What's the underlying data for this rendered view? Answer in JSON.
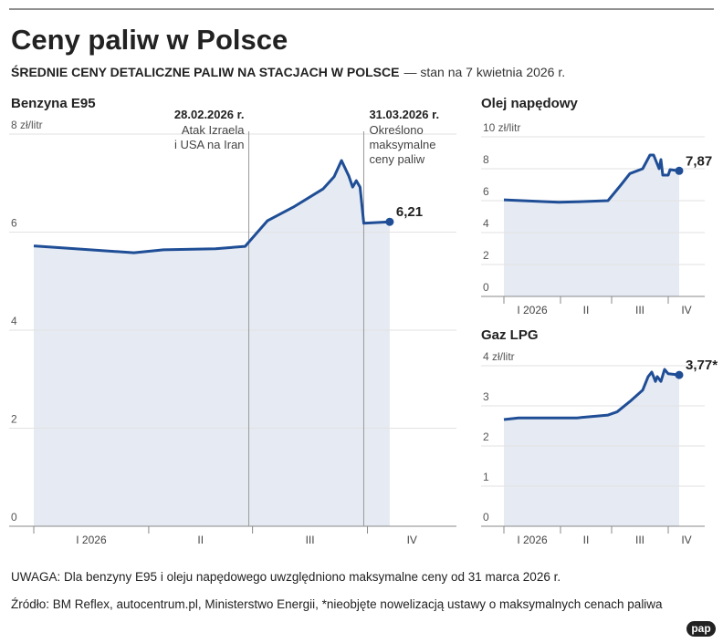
{
  "header": {
    "title": "Ceny paliw w Polsce",
    "subtitle_bold": "ŚREDNIE CENY DETALICZNE PALIW NA STACJACH W POLSCE",
    "subtitle_rest": "— stan na 7 kwietnia 2026 r."
  },
  "chart_data": [
    {
      "type": "line",
      "title": "Benzyna E95",
      "color": "#1f4e96",
      "fill": "#e6ebf3",
      "grid": true,
      "x": [
        0,
        27,
        35,
        49,
        57,
        63,
        70,
        78,
        81,
        83,
        85,
        86,
        87,
        88,
        89,
        96
      ],
      "values": [
        5.72,
        5.58,
        5.64,
        5.66,
        5.71,
        6.23,
        6.51,
        6.88,
        7.13,
        7.46,
        7.14,
        6.92,
        7.05,
        6.92,
        6.18,
        6.21
      ],
      "xlim": [
        0,
        114
      ],
      "ylim": [
        0,
        8
      ],
      "xticks": [
        {
          "value": 0,
          "label": "I 2026"
        },
        {
          "value": 31,
          "label": "II"
        },
        {
          "value": 59,
          "label": "III"
        },
        {
          "value": 90,
          "label": "IV"
        }
      ],
      "yticks": [
        0,
        2,
        4,
        6,
        {
          "value": 8,
          "label": "8 zł/litr"
        }
      ],
      "end_label": {
        "value": 6.21,
        "label": "6,21"
      },
      "annotations": [
        {
          "x": 58,
          "date": "28.02.2026 r.",
          "lines": [
            "Atak Izraela",
            "i USA na Iran"
          ]
        },
        {
          "x": 89,
          "date": "31.03.2026 r.",
          "lines": [
            "Określono",
            "maksymalne",
            "ceny paliw"
          ]
        }
      ]
    },
    {
      "type": "line",
      "title": "Olej napędowy",
      "color": "#1f4e96",
      "fill": "#e6ebf3",
      "grid": true,
      "x": [
        0,
        30,
        45,
        57,
        64,
        69,
        76,
        80,
        82,
        85,
        86,
        87,
        90,
        91,
        96
      ],
      "values": [
        6.05,
        5.9,
        5.95,
        6.0,
        6.97,
        7.7,
        8.0,
        8.86,
        8.86,
        8.0,
        8.57,
        7.6,
        7.6,
        7.94,
        7.87
      ],
      "xlim": [
        0,
        110
      ],
      "ylim": [
        0,
        10
      ],
      "xticks": [
        {
          "value": 0,
          "label": "I 2026"
        },
        {
          "value": 31,
          "label": "II"
        },
        {
          "value": 59,
          "label": "III"
        },
        {
          "value": 90,
          "label": "IV"
        }
      ],
      "yticks": [
        0,
        2,
        4,
        6,
        8,
        {
          "value": 10,
          "label": "10 zł/litr"
        }
      ],
      "end_label": {
        "value": 7.87,
        "label": "7,87"
      }
    },
    {
      "type": "line",
      "title": "Gaz LPG",
      "color": "#1f4e96",
      "fill": "#e6ebf3",
      "grid": true,
      "x": [
        0,
        8,
        40,
        57,
        62,
        69,
        76,
        79,
        81,
        83,
        84,
        86,
        88,
        90,
        96
      ],
      "values": [
        2.66,
        2.7,
        2.7,
        2.77,
        2.85,
        3.11,
        3.39,
        3.73,
        3.84,
        3.61,
        3.73,
        3.61,
        3.91,
        3.8,
        3.77
      ],
      "xlim": [
        0,
        110
      ],
      "ylim": [
        0,
        4
      ],
      "xticks": [
        {
          "value": 0,
          "label": "I 2026"
        },
        {
          "value": 31,
          "label": "II"
        },
        {
          "value": 59,
          "label": "III"
        },
        {
          "value": 90,
          "label": "IV"
        }
      ],
      "yticks": [
        0,
        1,
        2,
        3,
        {
          "value": 4,
          "label": "4 zł/litr"
        }
      ],
      "end_label": {
        "value": 3.77,
        "label": "3,77*"
      }
    }
  ],
  "notes": {
    "remark": "UWAGA: Dla benzyny E95 i oleju napędowego uwzględniono maksymalne ceny od 31 marca 2026 r.",
    "source": "Źródło: BM Reflex, autocentrum.pl, Ministerstwo Energii, *nieobjęte nowelizacją ustawy o maksymalnych cenach paliwa"
  },
  "logo": "pap"
}
